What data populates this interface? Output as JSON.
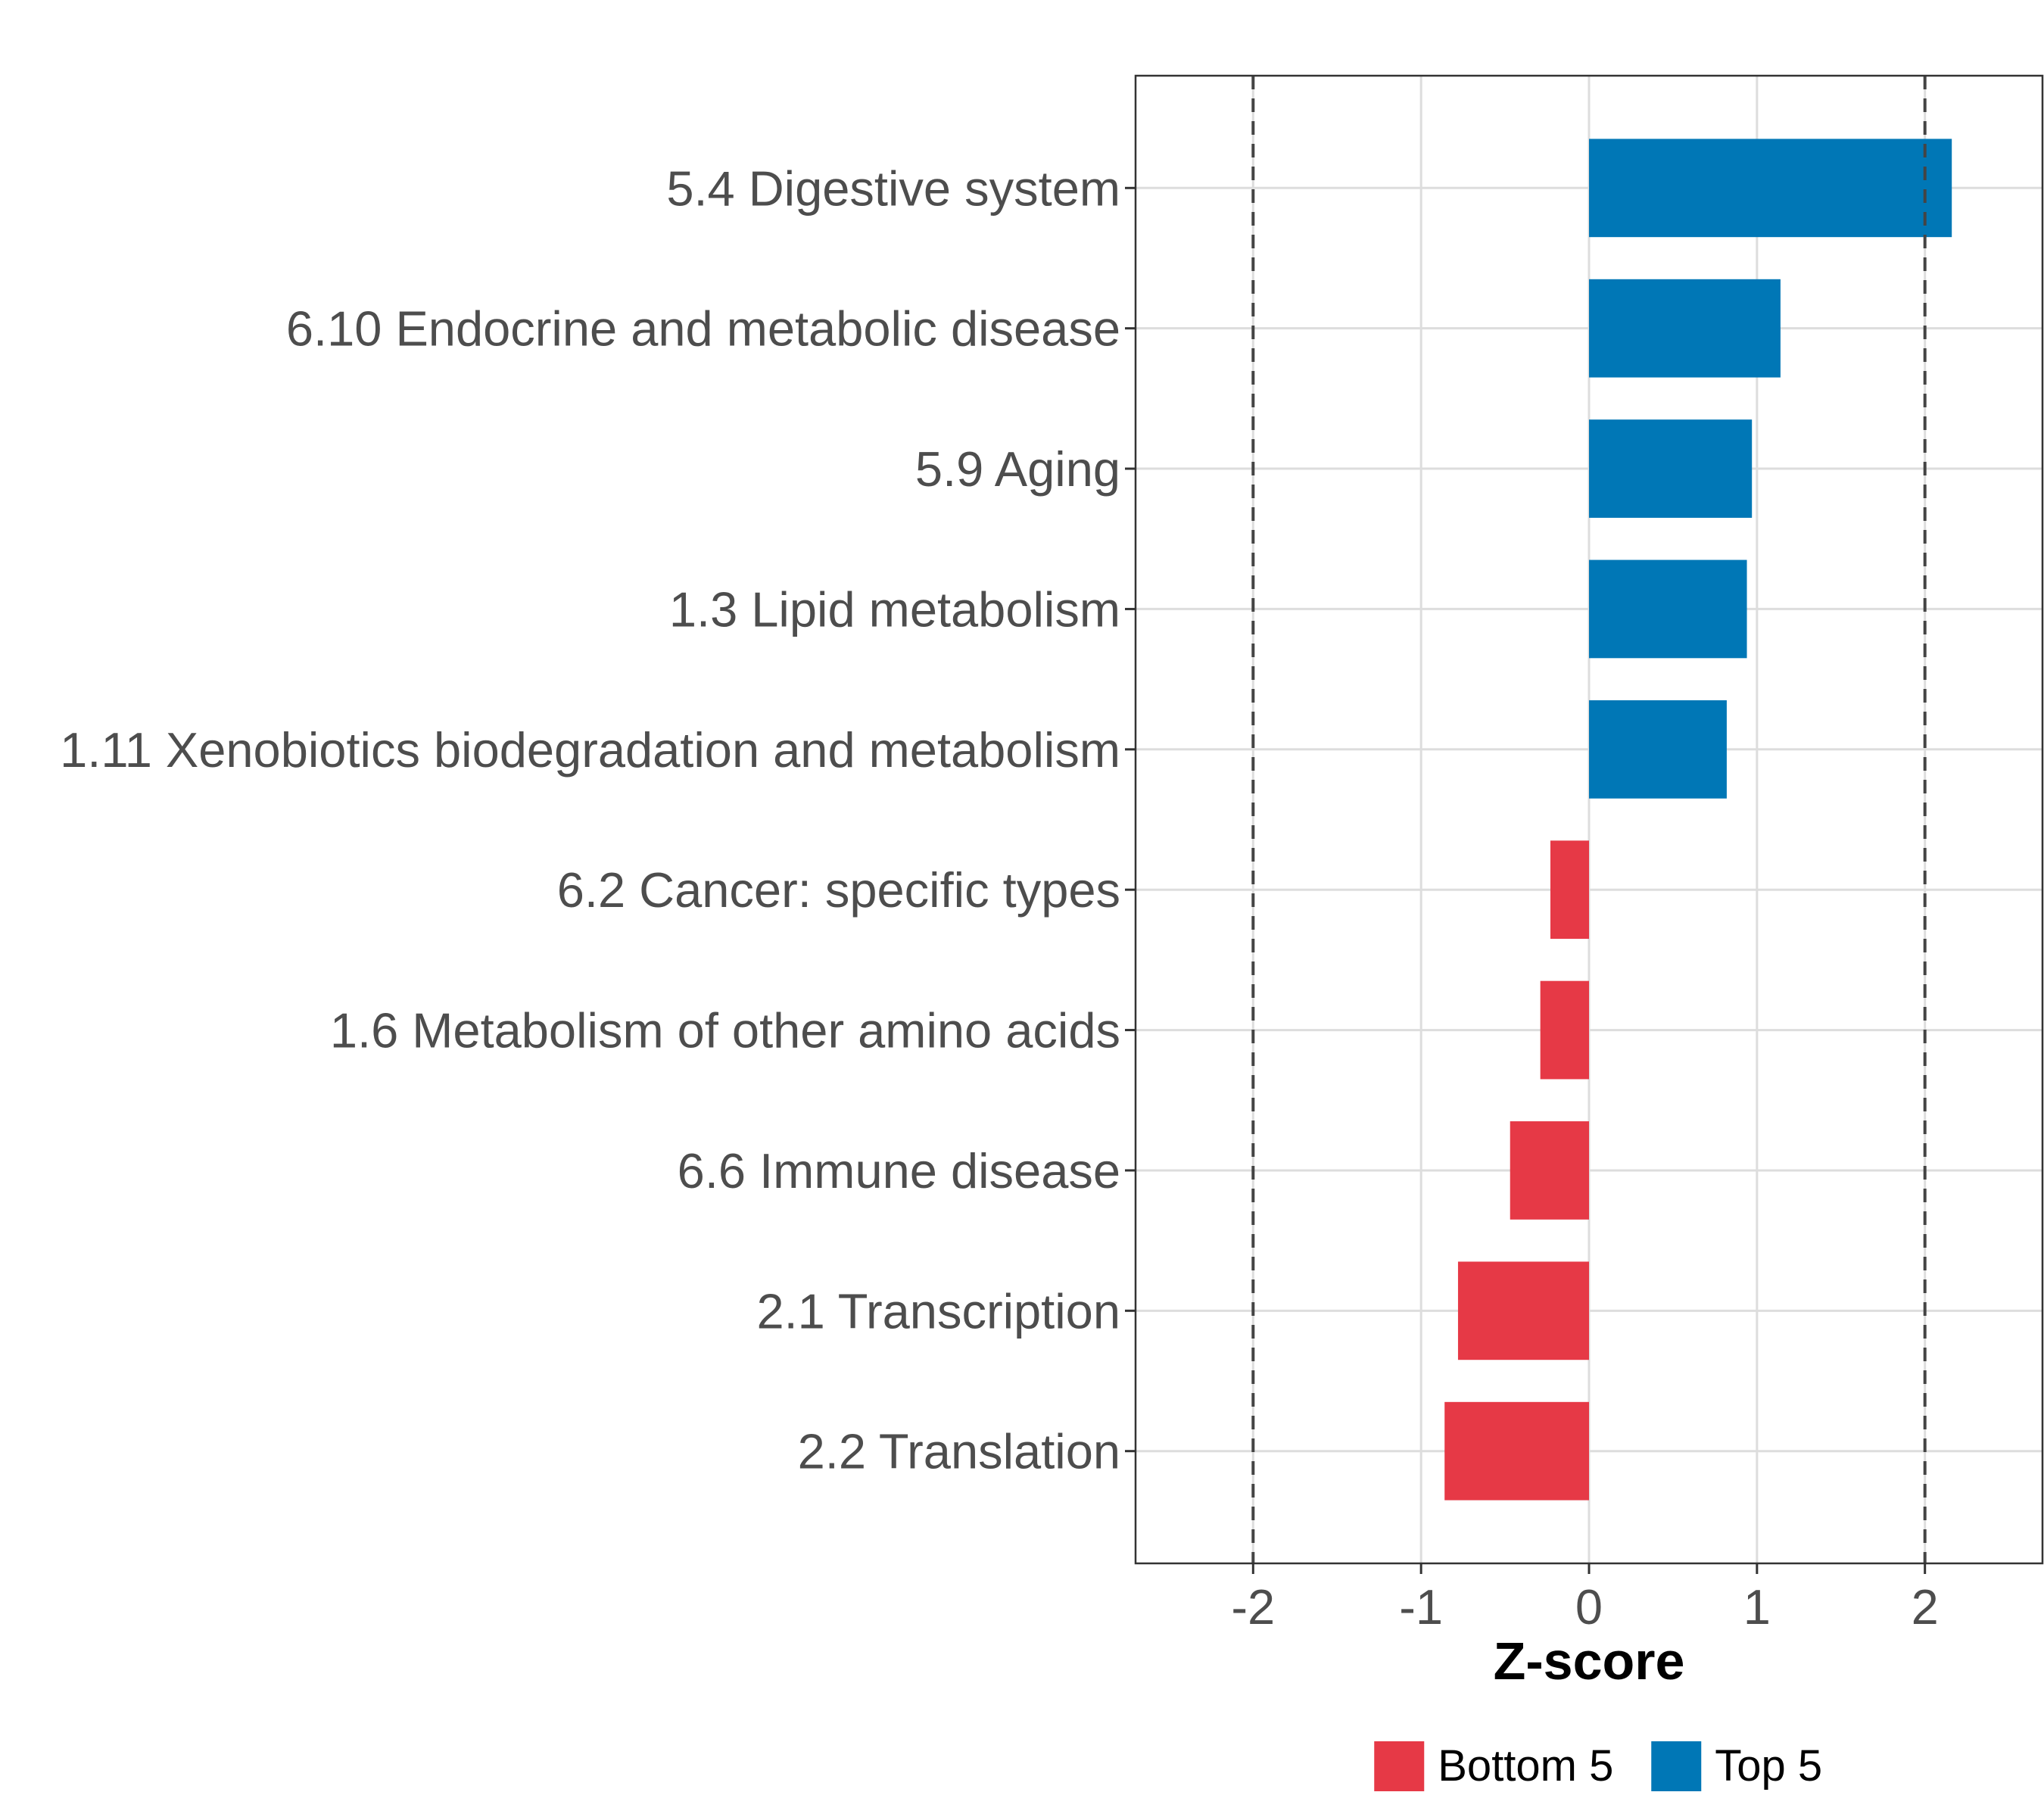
{
  "chart_data": {
    "type": "bar",
    "orientation": "horizontal",
    "xlabel": "Z-score",
    "ylabel": "",
    "xlim": [
      -2.7,
      2.7
    ],
    "xticks": [
      -2,
      -1,
      0,
      1,
      2
    ],
    "xtick_labels": [
      "-2",
      "-1",
      "0",
      "1",
      "2"
    ],
    "reference_lines": [
      -2,
      2
    ],
    "grid": true,
    "categories": [
      "5.4 Digestive system",
      "6.10 Endocrine and metabolic disease",
      "5.9 Aging",
      "1.3 Lipid metabolism",
      "1.11 Xenobiotics biodegradation and metabolism",
      "6.2 Cancer: specific types",
      "1.6 Metabolism of other amino acids",
      "6.6 Immune disease",
      "2.1 Transcription",
      "2.2 Translation"
    ],
    "values": [
      2.16,
      1.14,
      0.97,
      0.94,
      0.82,
      -0.23,
      -0.29,
      -0.47,
      -0.78,
      -0.86
    ],
    "groups": [
      "Top 5",
      "Top 5",
      "Top 5",
      "Top 5",
      "Top 5",
      "Bottom 5",
      "Bottom 5",
      "Bottom 5",
      "Bottom 5",
      "Bottom 5"
    ],
    "legend": {
      "position": "bottom",
      "entries": [
        {
          "label": "Bottom 5",
          "color": "#e63946"
        },
        {
          "label": "Top 5",
          "color": "#0077b6"
        }
      ]
    }
  }
}
